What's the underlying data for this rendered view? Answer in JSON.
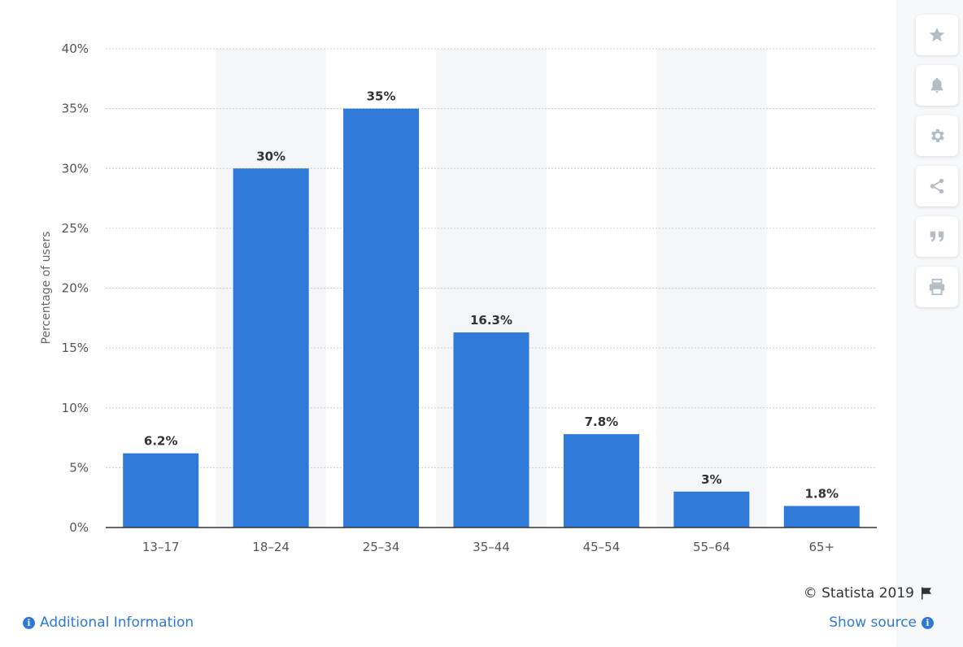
{
  "chart_data": {
    "type": "bar",
    "categories": [
      "13-17",
      "18-24",
      "25-34",
      "35-44",
      "45-54",
      "55-64",
      "65+"
    ],
    "values": [
      6.2,
      30,
      35,
      16.3,
      7.8,
      3,
      1.8
    ],
    "value_labels": [
      "6.2%",
      "30%",
      "35%",
      "16.3%",
      "7.8%",
      "3%",
      "1.8%"
    ],
    "y_ticks": [
      0,
      5,
      10,
      15,
      20,
      25,
      30,
      35,
      40
    ],
    "y_tick_labels": [
      "0%",
      "5%",
      "10%",
      "15%",
      "20%",
      "25%",
      "30%",
      "35%",
      "40%"
    ],
    "ylabel": "Percentage of users",
    "xlabel": "",
    "ylim": [
      0,
      40
    ],
    "grid": true,
    "bar_color": "#2f79d9",
    "band_color": "#f5f6f8"
  },
  "footer": {
    "copyright": "© Statista 2019",
    "additional_info": "Additional Information",
    "show_source": "Show source"
  },
  "toolbar": {
    "icons": [
      "star-icon",
      "bell-icon",
      "gear-icon",
      "share-icon",
      "quote-icon",
      "print-icon"
    ]
  },
  "colors": {
    "link": "#2f79d6",
    "axis_text": "#555555",
    "label_text": "#333333"
  }
}
